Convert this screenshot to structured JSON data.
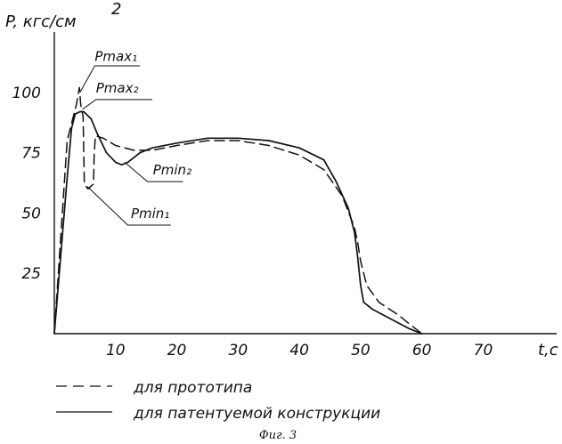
{
  "chart_data": {
    "type": "line",
    "ylabel": "P, кгс/см",
    "ylabel_superscript": "2",
    "xlabel": "t,c",
    "xlim": [
      0,
      82
    ],
    "ylim": [
      0,
      125
    ],
    "xticks": [
      10,
      20,
      30,
      40,
      50,
      60,
      70
    ],
    "yticks": [
      25,
      50,
      75,
      100
    ],
    "grid": false,
    "series": [
      {
        "name": "для прототипа",
        "style": "dashed",
        "points": [
          [
            0,
            0
          ],
          [
            2.1,
            80
          ],
          [
            3.6,
            95
          ],
          [
            4.1,
            102
          ],
          [
            4.3,
            95
          ],
          [
            4.7,
            90
          ],
          [
            4.9,
            62
          ],
          [
            5.5,
            60
          ],
          [
            6.4,
            62
          ],
          [
            6.5,
            74
          ],
          [
            6.7,
            82
          ],
          [
            8,
            81
          ],
          [
            10,
            78
          ],
          [
            13,
            76
          ],
          [
            16,
            76
          ],
          [
            20,
            78
          ],
          [
            25,
            80
          ],
          [
            30,
            80
          ],
          [
            35,
            78
          ],
          [
            40,
            74
          ],
          [
            44,
            68
          ],
          [
            47,
            57
          ],
          [
            49,
            44
          ],
          [
            49.5,
            38
          ],
          [
            50,
            30
          ],
          [
            51,
            20
          ],
          [
            53,
            13
          ],
          [
            56,
            8
          ],
          [
            58,
            4
          ],
          [
            60,
            0
          ]
        ]
      },
      {
        "name": "для патентуемой конструкции",
        "style": "solid",
        "points": [
          [
            0,
            0
          ],
          [
            2,
            62
          ],
          [
            2.8,
            85
          ],
          [
            3.4,
            91
          ],
          [
            4.2,
            92
          ],
          [
            4.8,
            92
          ],
          [
            6,
            89
          ],
          [
            7,
            83
          ],
          [
            8.5,
            75
          ],
          [
            10,
            71
          ],
          [
            11,
            70
          ],
          [
            12,
            71
          ],
          [
            14,
            75
          ],
          [
            16,
            77
          ],
          [
            20,
            79
          ],
          [
            25,
            81
          ],
          [
            30,
            81
          ],
          [
            35,
            80
          ],
          [
            40,
            77
          ],
          [
            44,
            72
          ],
          [
            46,
            63
          ],
          [
            48,
            52
          ],
          [
            49,
            42
          ],
          [
            49.5,
            32
          ],
          [
            50,
            20
          ],
          [
            50.5,
            13
          ],
          [
            52,
            10
          ],
          [
            55,
            6
          ],
          [
            58,
            2
          ],
          [
            60,
            0
          ]
        ]
      }
    ],
    "annotations": [
      {
        "text": "Pmax₁",
        "x": 6.6,
        "y": 113
      },
      {
        "text": "Pmax₂",
        "x": 6.8,
        "y": 100
      },
      {
        "text": "Pmin₂",
        "x": 16.1,
        "y": 66
      },
      {
        "text": "Pmin₁",
        "x": 12.5,
        "y": 48
      }
    ],
    "legend_position": "bottom",
    "caption": "Фиг. 3"
  }
}
